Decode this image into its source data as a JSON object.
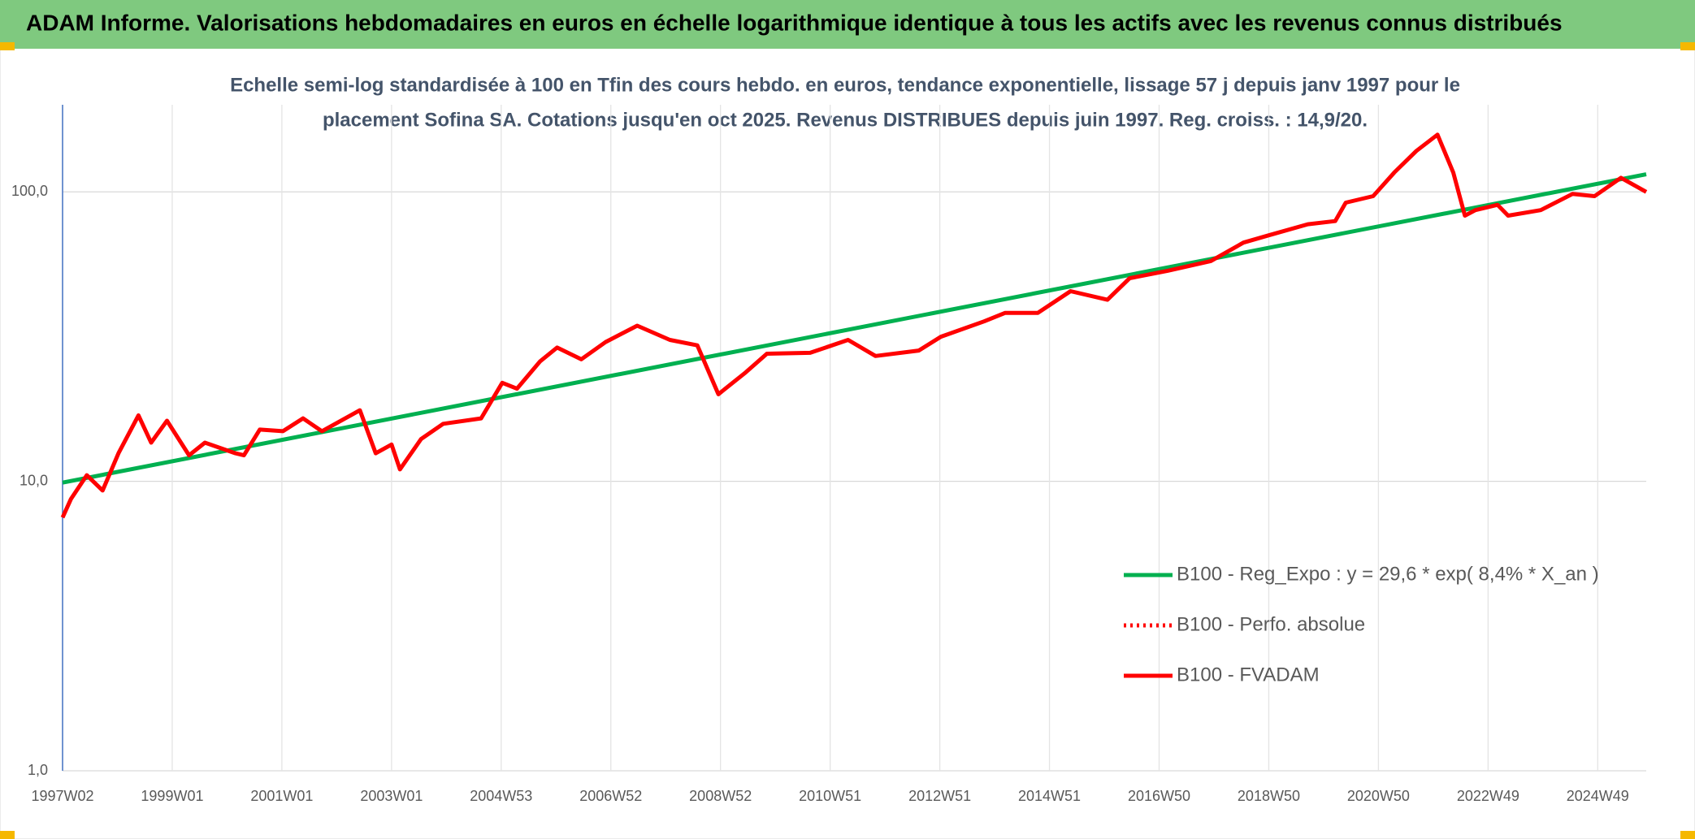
{
  "header": {
    "title": "ADAM Informe. Valorisations hebdomadaires en euros en échelle logarithmique identique à tous les actifs avec les revenus connus distribués"
  },
  "chart_data": {
    "type": "line",
    "subtitle": [
      "Echelle semi-log standardisée à 100 en Tfin des cours hebdo. en euros, tendance exponentielle, lissage 57 j depuis janv 1997 pour le",
      "placement Sofina SA. Cotations jusqu'en oct 2025. Revenus DISTRIBUES depuis juin 1997. Reg. croiss. : 14,9/20."
    ],
    "log_scale": true,
    "grid": true,
    "legend": "right",
    "ylim": [
      1,
      200
    ],
    "yticks": [
      {
        "value": 1,
        "label": "1,0"
      },
      {
        "value": 10,
        "label": "10,0"
      },
      {
        "value": 100,
        "label": "100,0"
      }
    ],
    "xlim": [
      0,
      1502
    ],
    "xticks": [
      {
        "value": 0,
        "label": "1997W02"
      },
      {
        "value": 104,
        "label": "1999W01"
      },
      {
        "value": 208,
        "label": "2001W01"
      },
      {
        "value": 312,
        "label": "2003W01"
      },
      {
        "value": 416,
        "label": "2004W53"
      },
      {
        "value": 520,
        "label": "2006W52"
      },
      {
        "value": 624,
        "label": "2008W52"
      },
      {
        "value": 728,
        "label": "2010W51"
      },
      {
        "value": 832,
        "label": "2012W51"
      },
      {
        "value": 936,
        "label": "2014W51"
      },
      {
        "value": 1040,
        "label": "2016W50"
      },
      {
        "value": 1144,
        "label": "2018W50"
      },
      {
        "value": 1248,
        "label": "2020W50"
      },
      {
        "value": 1352,
        "label": "2022W49"
      },
      {
        "value": 1456,
        "label": "2024W49"
      }
    ],
    "series": [
      {
        "name": "B100 - Reg_Expo : y = 29,6 * exp( 8,4% *  X_an )",
        "color": "#00b050",
        "dash": "solid",
        "x": [
          0,
          1502
        ],
        "values": [
          9.9,
          115
        ]
      },
      {
        "name": "B100 - Perfo. absolue",
        "color": "#ff0000",
        "dash": "dotted",
        "x": [],
        "values": []
      },
      {
        "name": "B100 - FVADAM",
        "color": "#ff0000",
        "dash": "solid",
        "x": [
          0,
          8,
          23,
          38,
          53,
          72,
          84,
          99,
          120,
          135,
          164,
          172,
          187,
          209,
          228,
          246,
          282,
          297,
          312,
          320,
          340,
          361,
          397,
          417,
          431,
          453,
          469,
          492,
          515,
          545,
          576,
          602,
          622,
          648,
          668,
          709,
          745,
          771,
          812,
          833,
          874,
          894,
          925,
          956,
          991,
          1012,
          1048,
          1089,
          1120,
          1145,
          1181,
          1207,
          1217,
          1243,
          1263,
          1284,
          1304,
          1319,
          1330,
          1340,
          1361,
          1371,
          1402,
          1432,
          1453,
          1478,
          1502
        ],
        "values": [
          7.5,
          8.7,
          10.5,
          9.3,
          12.5,
          16.9,
          13.6,
          16.2,
          12.3,
          13.6,
          12.5,
          12.3,
          15.1,
          14.9,
          16.5,
          14.9,
          17.6,
          12.5,
          13.4,
          11.0,
          14.0,
          15.8,
          16.5,
          21.9,
          20.9,
          26.0,
          29.0,
          26.4,
          30.3,
          34.5,
          30.8,
          29.5,
          20.0,
          23.8,
          27.6,
          27.8,
          30.8,
          27.1,
          28.3,
          31.6,
          35.7,
          38.2,
          38.2,
          45.4,
          42.4,
          50.3,
          53.4,
          57.7,
          66.8,
          71.0,
          77.3,
          79.3,
          91.8,
          96.7,
          116.7,
          138.6,
          157.7,
          116.7,
          82.8,
          86.5,
          90.2,
          82.8,
          86.5,
          98.4,
          96.7,
          111.9,
          100
        ]
      }
    ]
  }
}
